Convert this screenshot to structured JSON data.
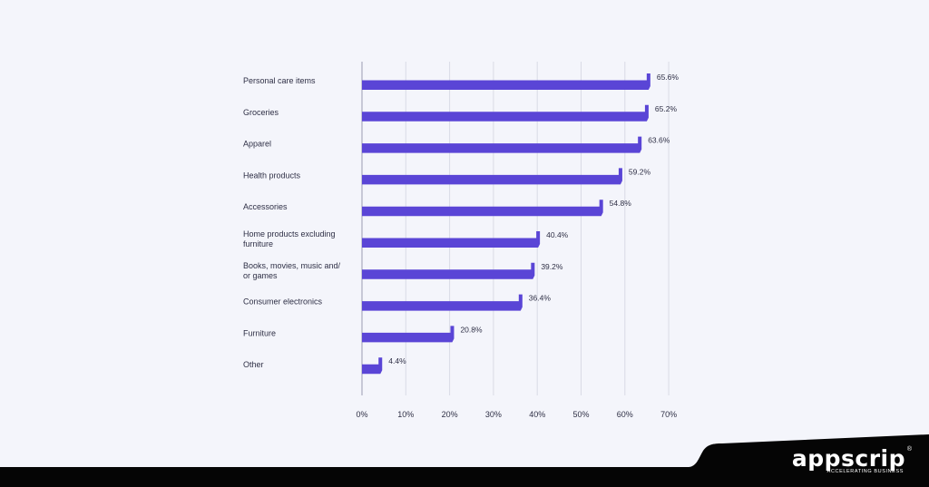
{
  "chart_data": {
    "type": "bar",
    "orientation": "horizontal",
    "categories": [
      [
        "Personal care items"
      ],
      [
        "Groceries"
      ],
      [
        "Apparel"
      ],
      [
        "Health products"
      ],
      [
        "Accessories"
      ],
      [
        "Home products excluding",
        "furniture"
      ],
      [
        "Books, movies, music and/",
        "or games"
      ],
      [
        "Consumer electronics"
      ],
      [
        "Furniture"
      ],
      [
        "Other"
      ]
    ],
    "values": [
      65.6,
      65.2,
      63.6,
      59.2,
      54.8,
      40.4,
      39.2,
      36.4,
      20.8,
      4.4
    ],
    "value_labels": [
      "65.6%",
      "65.2%",
      "63.6%",
      "59.2%",
      "54.8%",
      "40.4%",
      "39.2%",
      "36.4%",
      "20.8%",
      "4.4%"
    ],
    "xticks": [
      0,
      10,
      20,
      30,
      40,
      50,
      60,
      70
    ],
    "xtick_labels": [
      "0%",
      "10%",
      "20%",
      "30%",
      "40%",
      "50%",
      "60%",
      "70%"
    ],
    "xlim": [
      0,
      70
    ],
    "grid": true,
    "title": "",
    "xlabel": "",
    "ylabel": "",
    "colors": {
      "bar": "#5a45d6",
      "background": "#f4f5fb",
      "footer": "#050505"
    }
  },
  "brand": {
    "name": "appscrip",
    "tagline": "ACCELERATING BUSINESS",
    "mark": "®"
  }
}
